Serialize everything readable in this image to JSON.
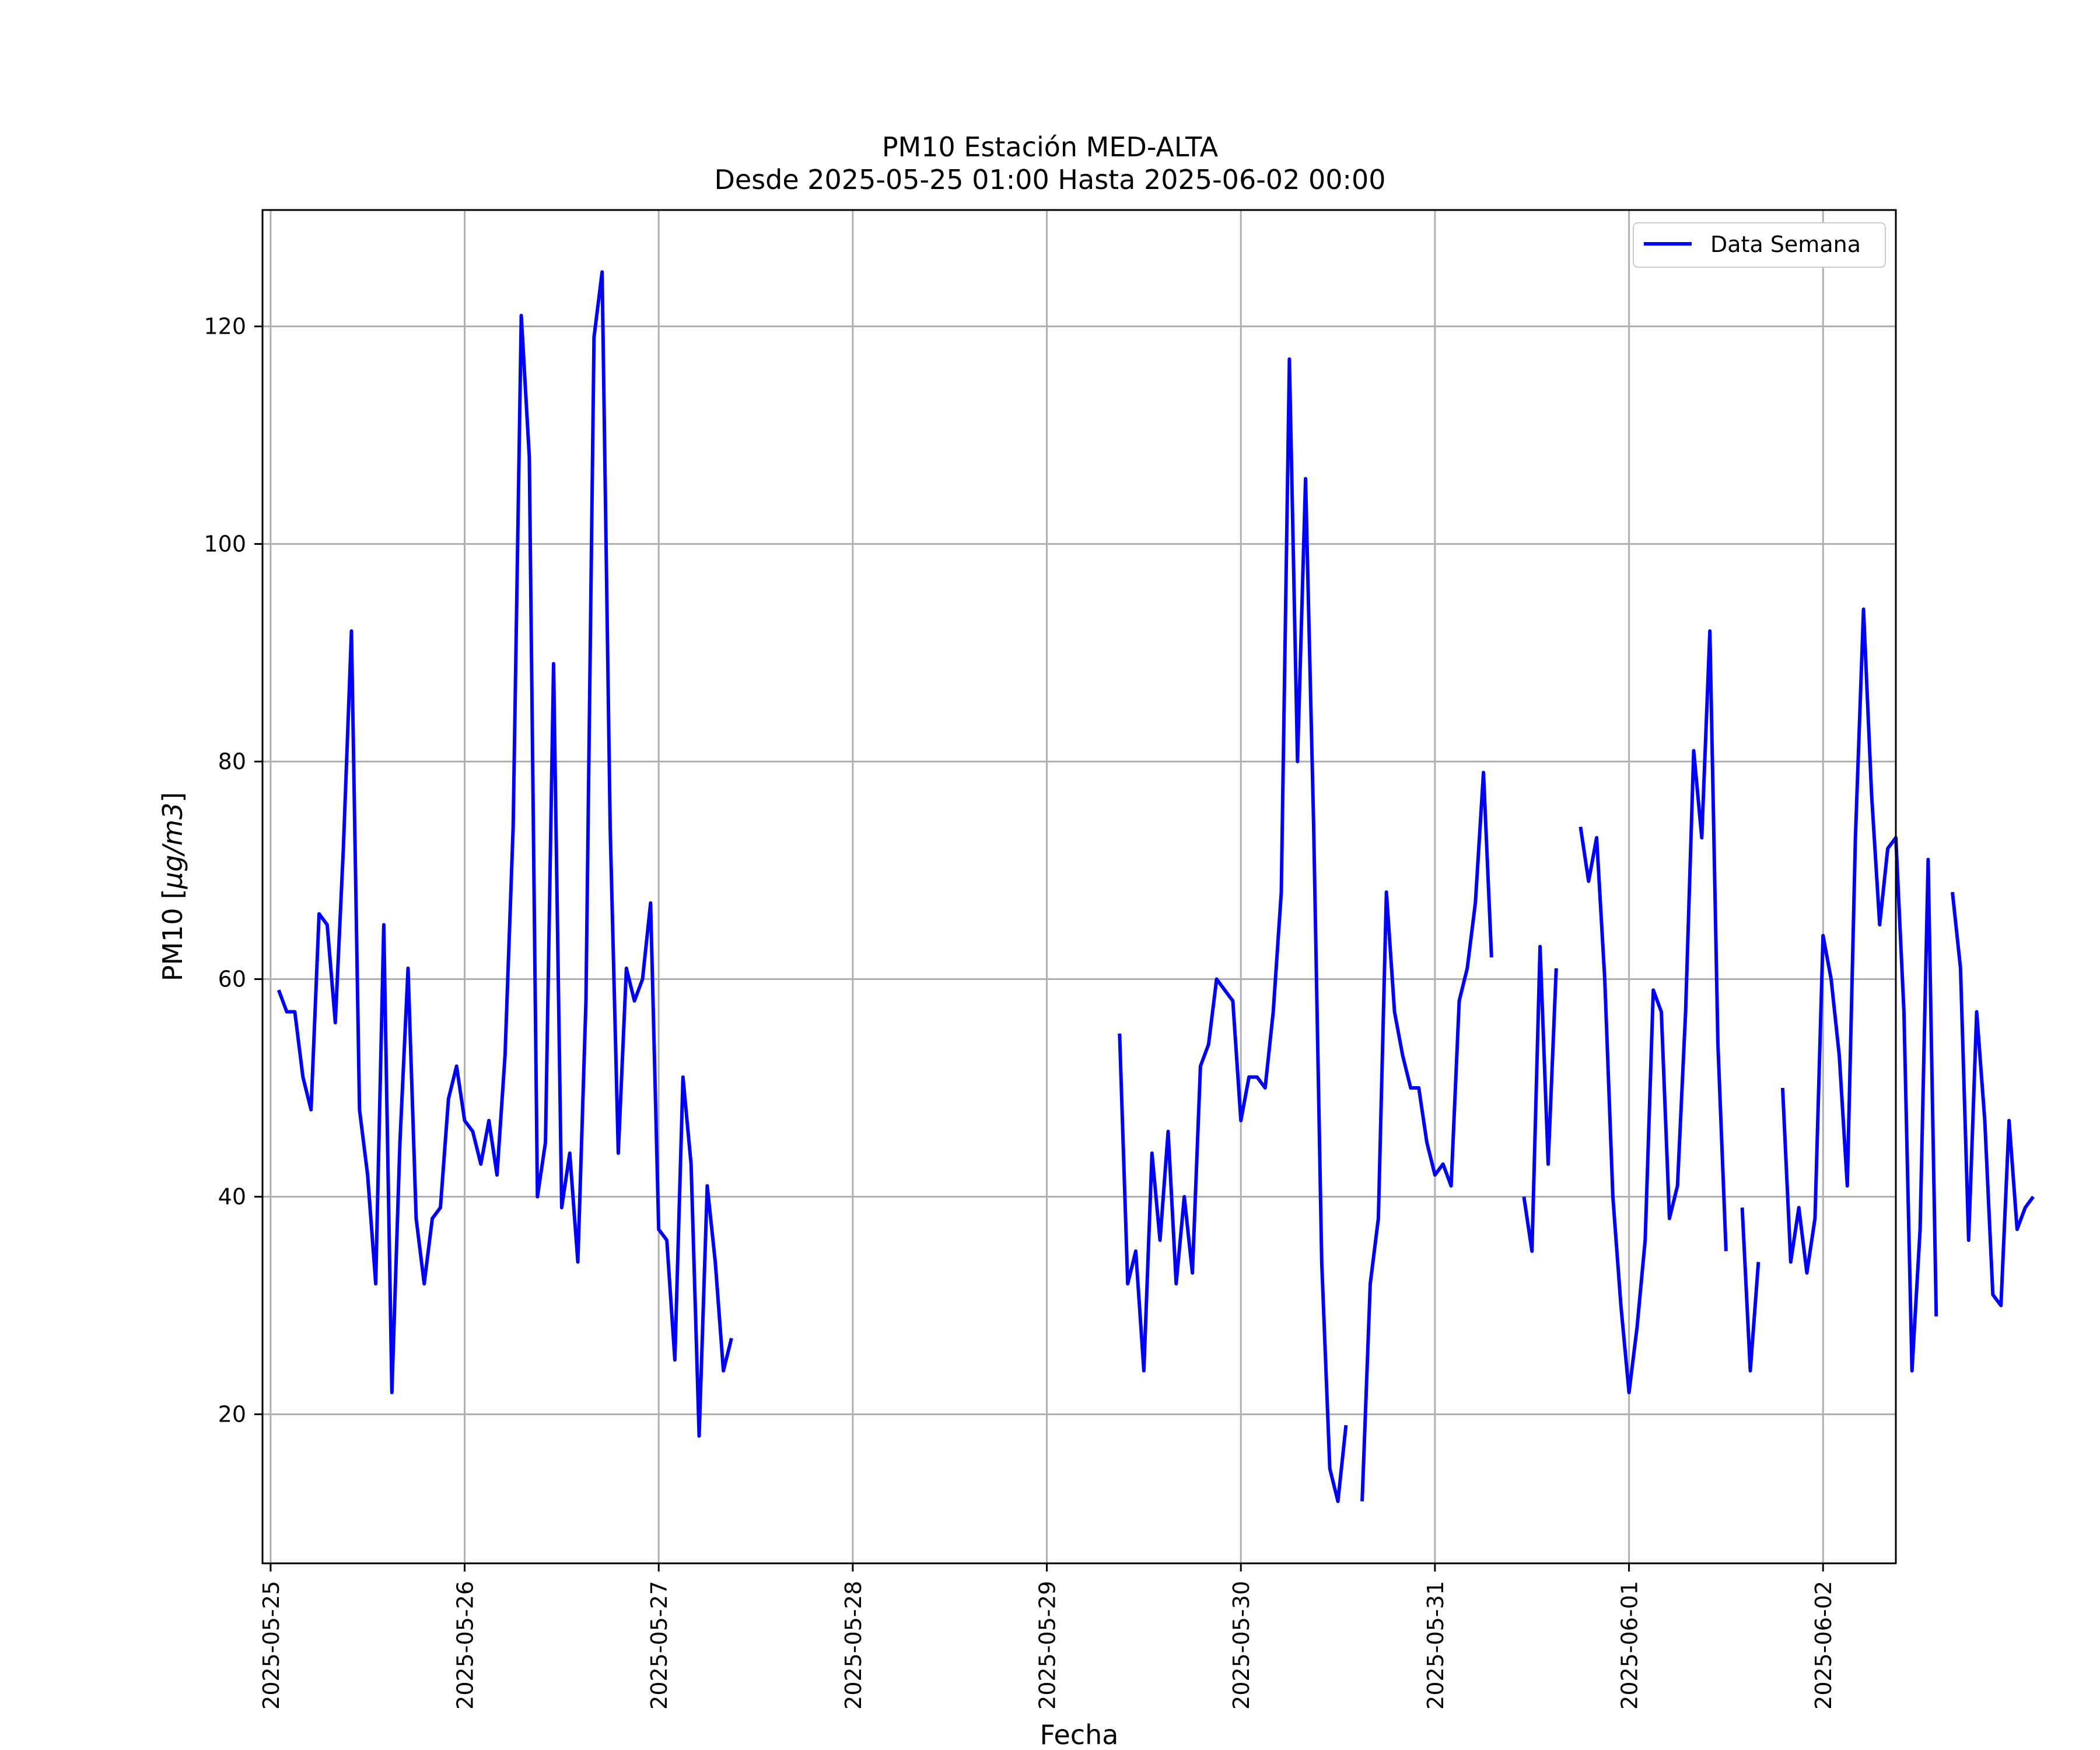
{
  "chart_data": {
    "type": "line",
    "title": "PM10 Estación MED-ALTA",
    "subtitle": "Desde 2025-05-25 01:00 Hasta 2025-06-02 00:00",
    "xlabel": "Fecha",
    "ylabel_main": "PM10 [",
    "ylabel_unit": "μg/m3",
    "ylabel_close": "]",
    "xlim": [
      "2025-05-24 23:00",
      "2025-06-02 09:00"
    ],
    "ylim": [
      6.3,
      130.7
    ],
    "grid": true,
    "legend_position": "top-right",
    "x_ticks": [
      "2025-05-25",
      "2025-05-26",
      "2025-05-27",
      "2025-05-28",
      "2025-05-29",
      "2025-05-30",
      "2025-05-31",
      "2025-06-01",
      "2025-06-02"
    ],
    "y_ticks": [
      20,
      40,
      60,
      80,
      100,
      120
    ],
    "series": [
      {
        "name": "Data Semana",
        "color": "#0000ff",
        "start": "2025-05-25 01:00",
        "interval_hours": 1,
        "values": [
          59,
          57,
          57,
          51,
          48,
          66,
          65,
          56,
          72,
          92,
          48,
          42,
          32,
          65,
          22,
          45,
          61,
          38,
          32,
          38,
          39,
          49,
          52,
          47,
          46,
          43,
          47,
          42,
          53,
          74,
          121,
          108,
          40,
          45,
          89,
          39,
          44,
          34,
          58,
          119,
          125,
          74,
          44,
          61,
          58,
          60,
          67,
          37,
          36,
          25,
          51,
          43,
          18,
          41,
          34,
          24,
          27,
          null,
          null,
          null,
          null,
          null,
          null,
          null,
          null,
          null,
          null,
          null,
          null,
          null,
          null,
          null,
          null,
          null,
          null,
          null,
          null,
          null,
          null,
          null,
          null,
          null,
          null,
          null,
          null,
          null,
          null,
          null,
          null,
          null,
          null,
          null,
          null,
          null,
          null,
          null,
          null,
          null,
          null,
          null,
          null,
          null,
          null,
          null,
          55,
          32,
          35,
          24,
          44,
          36,
          46,
          32,
          40,
          33,
          52,
          54,
          60,
          59,
          58,
          47,
          51,
          51,
          50,
          57,
          68,
          117,
          80,
          106,
          74,
          34,
          15,
          12,
          19,
          null,
          12,
          32,
          38,
          68,
          57,
          53,
          50,
          50,
          45,
          42,
          43,
          41,
          58,
          61,
          67,
          79,
          62,
          null,
          null,
          null,
          40,
          35,
          63,
          43,
          61,
          null,
          null,
          74,
          69,
          73,
          60,
          40,
          30,
          22,
          28,
          36,
          59,
          57,
          38,
          41,
          57,
          81,
          73,
          92,
          54,
          35,
          null,
          39,
          24,
          34,
          null,
          null,
          50,
          34,
          39,
          33,
          38,
          64,
          60,
          53,
          41,
          73,
          94,
          77,
          65,
          72,
          73,
          57,
          24,
          37,
          71,
          29,
          null,
          68,
          61,
          36,
          57,
          47,
          31,
          30,
          47,
          37,
          39,
          40
        ]
      }
    ]
  }
}
